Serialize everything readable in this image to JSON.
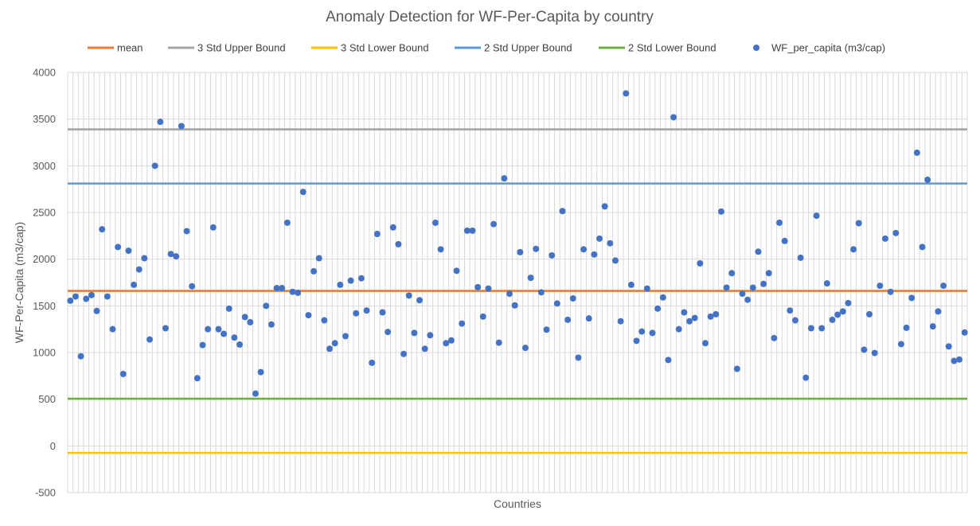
{
  "chart_data": {
    "type": "scatter",
    "title": "Anomaly Detection for WF-Per-Capita by country",
    "xlabel": "Countries",
    "ylabel": "WF-Per-Capita (m3/cap)",
    "ylim": [
      -500,
      4000
    ],
    "yticks": [
      "4000",
      "3500",
      "3000",
      "2500",
      "2000",
      "1500",
      "1000",
      "500",
      "0",
      "-500"
    ],
    "grid": true,
    "legend_position": "top",
    "reference_lines": [
      {
        "name": "mean",
        "value": 1660,
        "color": "#ED7D31"
      },
      {
        "name": "3 Std Upper Bound",
        "value": 3390,
        "color": "#A5A5A5"
      },
      {
        "name": "3 Std Lower Bound",
        "value": -75,
        "color": "#FFC000"
      },
      {
        "name": "2 Std Upper Bound",
        "value": 2810,
        "color": "#5B9BD5"
      },
      {
        "name": "2 Std Lower Bound",
        "value": 505,
        "color": "#70AD47"
      }
    ],
    "series": [
      {
        "name": "WF_per_capita (m3/cap)",
        "color": "#4472C4",
        "values": [
          1555,
          1600,
          960,
          1575,
          1615,
          1445,
          2320,
          1600,
          1250,
          2130,
          770,
          2090,
          1725,
          1890,
          2010,
          1140,
          3000,
          3470,
          1260,
          2055,
          2030,
          3425,
          2300,
          1710,
          725,
          1080,
          1250,
          2340,
          1250,
          1200,
          1470,
          1160,
          1085,
          1380,
          1325,
          560,
          790,
          1500,
          1300,
          1690,
          1690,
          2390,
          1650,
          1640,
          2720,
          1400,
          1870,
          2010,
          1345,
          1040,
          1100,
          1725,
          1175,
          1770,
          1420,
          1795,
          1450,
          890,
          2270,
          1430,
          1220,
          2340,
          2160,
          985,
          1610,
          1210,
          1560,
          1040,
          1185,
          2390,
          2105,
          1100,
          1130,
          1875,
          1310,
          2305,
          2305,
          1700,
          1385,
          1685,
          2375,
          1105,
          2865,
          1630,
          1505,
          2075,
          1050,
          1800,
          2110,
          1645,
          1245,
          2040,
          1525,
          2515,
          1350,
          1580,
          945,
          2105,
          1365,
          2050,
          2220,
          2565,
          2170,
          1985,
          1335,
          3775,
          1725,
          1125,
          1225,
          1685,
          1210,
          1470,
          1590,
          920,
          3520,
          1250,
          1430,
          1335,
          1370,
          1955,
          1100,
          1385,
          1410,
          2510,
          1695,
          1850,
          825,
          1630,
          1565,
          1695,
          2080,
          1735,
          1850,
          1155,
          2390,
          2195,
          1450,
          1345,
          2015,
          730,
          1260,
          2465,
          1260,
          1740,
          1350,
          1405,
          1440,
          1530,
          2105,
          2385,
          1030,
          1410,
          995,
          1715,
          2220,
          1650,
          2280,
          1090,
          1265,
          1585,
          3140,
          2130,
          2850,
          1280,
          1440,
          1715,
          1065,
          910,
          925,
          1215
        ]
      }
    ]
  }
}
